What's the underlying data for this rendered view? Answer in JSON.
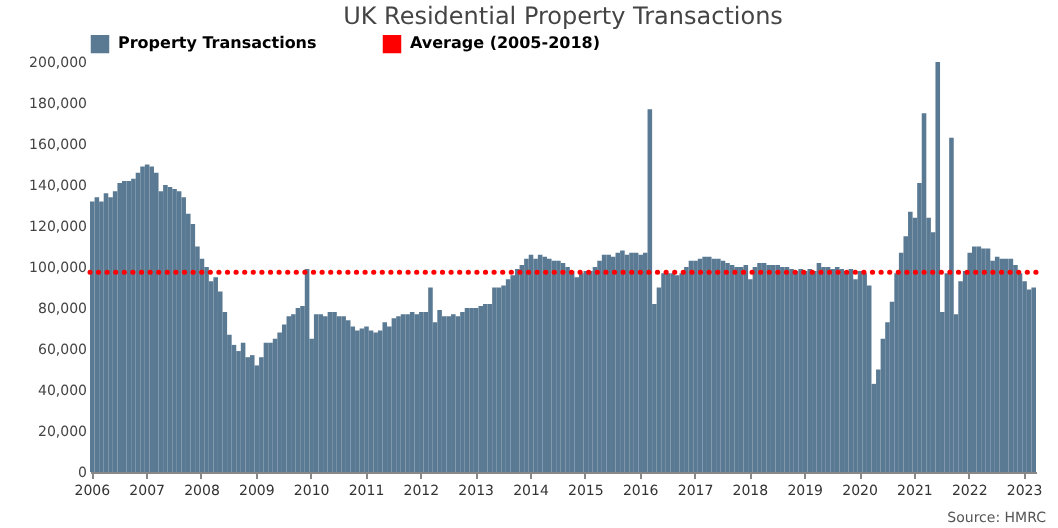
{
  "chart_data": {
    "type": "bar",
    "title": "UK Residential Property Transactions",
    "annotations": [
      "Source: HMRC"
    ],
    "categories": [
      "2006",
      null,
      null,
      null,
      null,
      null,
      null,
      null,
      null,
      null,
      null,
      null,
      "2007",
      null,
      null,
      null,
      null,
      null,
      null,
      null,
      null,
      null,
      null,
      null,
      "2008",
      null,
      null,
      null,
      null,
      null,
      null,
      null,
      null,
      null,
      null,
      null,
      "2009",
      null,
      null,
      null,
      null,
      null,
      null,
      null,
      null,
      null,
      null,
      null,
      "2010",
      null,
      null,
      null,
      null,
      null,
      null,
      null,
      null,
      null,
      null,
      null,
      "2011",
      null,
      null,
      null,
      null,
      null,
      null,
      null,
      null,
      null,
      null,
      null,
      "2012",
      null,
      null,
      null,
      null,
      null,
      null,
      null,
      null,
      null,
      null,
      null,
      "2013",
      null,
      null,
      null,
      null,
      null,
      null,
      null,
      null,
      null,
      null,
      null,
      "2014",
      null,
      null,
      null,
      null,
      null,
      null,
      null,
      null,
      null,
      null,
      null,
      "2015",
      null,
      null,
      null,
      null,
      null,
      null,
      null,
      null,
      null,
      null,
      null,
      "2016",
      null,
      null,
      null,
      null,
      null,
      null,
      null,
      null,
      null,
      null,
      null,
      "2017",
      null,
      null,
      null,
      null,
      null,
      null,
      null,
      null,
      null,
      null,
      null,
      "2018",
      null,
      null,
      null,
      null,
      null,
      null,
      null,
      null,
      null,
      null,
      null,
      "2019",
      null,
      null,
      null,
      null,
      null,
      null,
      null,
      null,
      null,
      null,
      null,
      "2020",
      null,
      null,
      null,
      null,
      null,
      null,
      null,
      null,
      null,
      null,
      null,
      "2021",
      null,
      null,
      null,
      null,
      null,
      null,
      null,
      null,
      null,
      null,
      null,
      "2022",
      null,
      null,
      null,
      null,
      null,
      null,
      null,
      null,
      null,
      null,
      null,
      "2023",
      null,
      null
    ],
    "series": [
      {
        "name": "Property Transactions",
        "color": "#5a7a94",
        "values": [
          132000,
          134000,
          132000,
          136000,
          134000,
          137000,
          141000,
          142000,
          142000,
          143000,
          146000,
          149000,
          150000,
          149000,
          146000,
          137000,
          140000,
          139000,
          138000,
          137000,
          134000,
          126000,
          121000,
          110000,
          104000,
          100000,
          93000,
          95000,
          88000,
          78000,
          67000,
          62000,
          59000,
          63000,
          56000,
          57000,
          52000,
          56000,
          63000,
          63000,
          65000,
          68000,
          72000,
          76000,
          77000,
          80000,
          81000,
          99000,
          65000,
          77000,
          77000,
          76000,
          78000,
          78000,
          76000,
          76000,
          74000,
          71000,
          69000,
          70000,
          71000,
          69000,
          68000,
          69000,
          73000,
          71000,
          75000,
          76000,
          77000,
          77000,
          78000,
          77000,
          78000,
          78000,
          90000,
          73000,
          79000,
          76000,
          76000,
          77000,
          76000,
          78000,
          80000,
          80000,
          80000,
          81000,
          82000,
          82000,
          90000,
          90000,
          91000,
          94000,
          96000,
          99000,
          101000,
          104000,
          106000,
          104000,
          106000,
          105000,
          104000,
          103000,
          103000,
          102000,
          100000,
          98000,
          95000,
          97000,
          98000,
          98000,
          100000,
          103000,
          106000,
          106000,
          105000,
          107000,
          108000,
          106000,
          107000,
          107000,
          106000,
          107000,
          177000,
          82000,
          90000,
          97000,
          97000,
          97000,
          96000,
          97000,
          100000,
          103000,
          103000,
          104000,
          105000,
          105000,
          104000,
          104000,
          103000,
          102000,
          101000,
          100000,
          100000,
          101000,
          94000,
          100000,
          102000,
          102000,
          101000,
          101000,
          101000,
          100000,
          100000,
          99000,
          98000,
          99000,
          98000,
          99000,
          98000,
          102000,
          100000,
          100000,
          99000,
          100000,
          99000,
          98000,
          99000,
          94000,
          98000,
          97000,
          91000,
          43000,
          50000,
          65000,
          73000,
          83000,
          97000,
          107000,
          115000,
          127000,
          124000,
          141000,
          175000,
          124000,
          117000,
          200000,
          78000,
          97000,
          163000,
          77000,
          93000,
          98000,
          107000,
          110000,
          110000,
          109000,
          109000,
          103000,
          105000,
          104000,
          104000,
          104000,
          101000,
          97000,
          93000,
          89000,
          90000
        ]
      }
    ],
    "ylim": [
      0,
      200000
    ],
    "yticks": [
      {
        "value": 0,
        "label": "0"
      },
      {
        "value": 20000,
        "label": "20,000"
      },
      {
        "value": 40000,
        "label": "40,000"
      },
      {
        "value": 60000,
        "label": "60,000"
      },
      {
        "value": 80000,
        "label": "80,000"
      },
      {
        "value": 100000,
        "label": "100,000"
      },
      {
        "value": 120000,
        "label": "120,000"
      },
      {
        "value": 140000,
        "label": "140,000"
      },
      {
        "value": 160000,
        "label": "160,000"
      },
      {
        "value": 180000,
        "label": "180,000"
      },
      {
        "value": 200000,
        "label": "200,000"
      }
    ],
    "ref_lines": [
      {
        "axis": "y",
        "value": 97500,
        "label": "Average (2005-2018)",
        "color": "#ff0000",
        "line_style": "dotted"
      }
    ],
    "legend": "top",
    "grid": false
  }
}
